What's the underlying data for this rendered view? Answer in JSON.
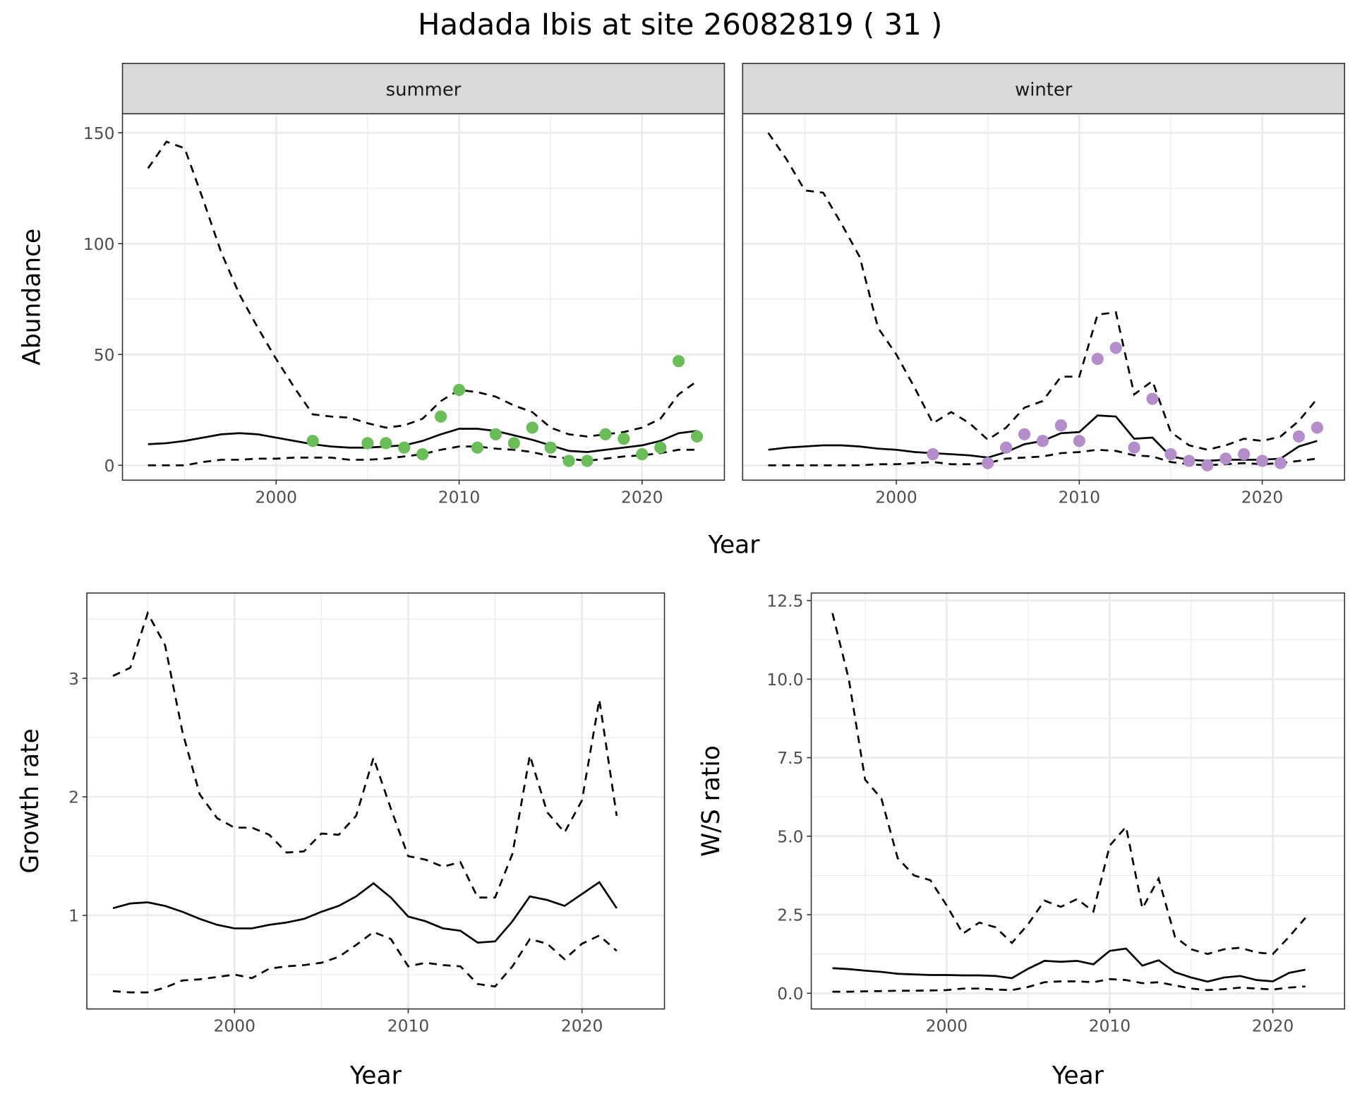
{
  "title": "Hadada Ibis at site 26082819 ( 31 )",
  "colors": {
    "summer_points": "#6ABD58",
    "winter_points": "#B48ECA",
    "line": "#000000",
    "grid": "#EBEBEB",
    "strip_bg": "#D9D9D9"
  },
  "chart_data": [
    {
      "id": "abundance",
      "type": "line",
      "facets": [
        "summer",
        "winter"
      ],
      "ylabel": "Abundance",
      "xlabel": "Year",
      "xlim": [
        1991.6,
        2024.5
      ],
      "ylim": [
        -6.7,
        158.6
      ],
      "xticks": [
        2000,
        2010,
        2020
      ],
      "yticks": [
        0,
        50,
        100,
        150
      ],
      "x": [
        1993,
        1994,
        1995,
        1996,
        1997,
        1998,
        1999,
        2000,
        2001,
        2002,
        2003,
        2004,
        2005,
        2006,
        2007,
        2008,
        2009,
        2010,
        2011,
        2012,
        2013,
        2014,
        2015,
        2016,
        2017,
        2018,
        2019,
        2020,
        2021,
        2022,
        2023
      ],
      "summer": {
        "mean": [
          9.5,
          10,
          11,
          12.5,
          14,
          14.5,
          14,
          12.5,
          11,
          9.5,
          8.5,
          8,
          8,
          8.5,
          9,
          11,
          14,
          16.5,
          16.5,
          15.5,
          13.5,
          11.5,
          9,
          6.5,
          6,
          7,
          8,
          9,
          11,
          14.5,
          15.5
        ],
        "upper": [
          134,
          146,
          143,
          120,
          96,
          77,
          62,
          48,
          35,
          23,
          22,
          21.5,
          19,
          17,
          18,
          21,
          29,
          34,
          33,
          31,
          27,
          24,
          17,
          14,
          13,
          14,
          15,
          17,
          21,
          32,
          38
        ],
        "lower": [
          0,
          0,
          0,
          1.5,
          2.5,
          2.5,
          3,
          3,
          3.5,
          3.5,
          3.5,
          2.5,
          2.5,
          3,
          4,
          5,
          7,
          8.5,
          8.5,
          7.5,
          7,
          6,
          4,
          3,
          2,
          3,
          4,
          4.5,
          5.5,
          7,
          7
        ],
        "points_x": [
          2002,
          2005,
          2006,
          2007,
          2008,
          2009,
          2010,
          2011,
          2012,
          2013,
          2014,
          2015,
          2016,
          2017,
          2018,
          2019,
          2020,
          2021,
          2022,
          2023
        ],
        "points_y": [
          11,
          10,
          10,
          8,
          5,
          22,
          34,
          8,
          14,
          10,
          17,
          8,
          2,
          2,
          14,
          12,
          5,
          8,
          47,
          13
        ]
      },
      "winter": {
        "mean": [
          7,
          8,
          8.5,
          9,
          9,
          8.5,
          7.5,
          7,
          6,
          5.5,
          5,
          4.5,
          3.5,
          6,
          9.5,
          11,
          14.5,
          15,
          22.5,
          22,
          12,
          12.5,
          4,
          2.5,
          2,
          2.5,
          2.5,
          2.5,
          3,
          8.5,
          11
        ],
        "upper": [
          150,
          138,
          124,
          123,
          109,
          94,
          62,
          50,
          35,
          19,
          24,
          19,
          11.5,
          17,
          26,
          29,
          40,
          40,
          68,
          69,
          32,
          38,
          15,
          9,
          7,
          9,
          12,
          11,
          13,
          20,
          30
        ],
        "lower": [
          0,
          0,
          0,
          0,
          0,
          0,
          0.5,
          0.5,
          1,
          1.5,
          0.5,
          0.5,
          1,
          3,
          3.5,
          4,
          5.5,
          6,
          7,
          6.5,
          4.5,
          4,
          1.5,
          0.5,
          0,
          0.5,
          1,
          0.5,
          1,
          2,
          3
        ],
        "points_x": [
          2002,
          2005,
          2006,
          2007,
          2008,
          2009,
          2010,
          2011,
          2012,
          2013,
          2014,
          2015,
          2016,
          2017,
          2018,
          2019,
          2020,
          2021,
          2022,
          2023
        ],
        "points_y": [
          5,
          1,
          8,
          14,
          11,
          18,
          11,
          48,
          53,
          8,
          30,
          5,
          2,
          0,
          3,
          5,
          2,
          1,
          13,
          17
        ]
      }
    },
    {
      "id": "growth",
      "type": "line",
      "ylabel": "Growth rate",
      "xlabel": "Year",
      "xlim": [
        1991.5,
        2024.75
      ],
      "ylim": [
        0.21,
        3.72
      ],
      "xticks": [
        2000,
        2010,
        2020
      ],
      "yticks": [
        1,
        2,
        3
      ],
      "x": [
        1993,
        1994,
        1995,
        1996,
        1997,
        1998,
        1999,
        2000,
        2001,
        2002,
        2003,
        2004,
        2005,
        2006,
        2007,
        2008,
        2009,
        2010,
        2011,
        2012,
        2013,
        2014,
        2015,
        2016,
        2017,
        2018,
        2019,
        2020,
        2021,
        2022
      ],
      "mean": [
        1.06,
        1.1,
        1.11,
        1.08,
        1.03,
        0.97,
        0.92,
        0.89,
        0.89,
        0.92,
        0.94,
        0.97,
        1.03,
        1.08,
        1.16,
        1.27,
        1.15,
        0.99,
        0.95,
        0.89,
        0.87,
        0.77,
        0.78,
        0.95,
        1.16,
        1.13,
        1.08,
        1.18,
        1.28,
        1.06
      ],
      "upper": [
        3.02,
        3.09,
        3.55,
        3.28,
        2.55,
        2.02,
        1.82,
        1.74,
        1.74,
        1.68,
        1.53,
        1.54,
        1.69,
        1.68,
        1.84,
        2.33,
        1.9,
        1.5,
        1.47,
        1.41,
        1.45,
        1.15,
        1.15,
        1.52,
        2.35,
        1.87,
        1.7,
        1.97,
        2.82,
        1.84
      ],
      "lower": [
        0.36,
        0.35,
        0.35,
        0.39,
        0.45,
        0.46,
        0.48,
        0.5,
        0.47,
        0.55,
        0.57,
        0.58,
        0.6,
        0.65,
        0.75,
        0.86,
        0.8,
        0.57,
        0.6,
        0.58,
        0.57,
        0.42,
        0.4,
        0.57,
        0.8,
        0.76,
        0.63,
        0.76,
        0.83,
        0.7
      ]
    },
    {
      "id": "ratio",
      "type": "line",
      "ylabel": "W/S ratio",
      "xlabel": "Year",
      "xlim": [
        1991.7,
        2024.4
      ],
      "ylim": [
        -0.5,
        12.74
      ],
      "xticks": [
        2000,
        2010,
        2020
      ],
      "yticks": [
        "0.0",
        "2.5",
        "5.0",
        "7.5",
        "10.0",
        "12.5"
      ],
      "x": [
        1993,
        1994,
        1995,
        1996,
        1997,
        1998,
        1999,
        2000,
        2001,
        2002,
        2003,
        2004,
        2005,
        2006,
        2007,
        2008,
        2009,
        2010,
        2011,
        2012,
        2013,
        2014,
        2015,
        2016,
        2017,
        2018,
        2019,
        2020,
        2021,
        2022
      ],
      "mean": [
        0.8,
        0.77,
        0.72,
        0.68,
        0.62,
        0.6,
        0.58,
        0.58,
        0.57,
        0.57,
        0.55,
        0.48,
        0.78,
        1.03,
        1.0,
        1.03,
        0.92,
        1.35,
        1.42,
        0.88,
        1.05,
        0.67,
        0.5,
        0.37,
        0.5,
        0.55,
        0.42,
        0.38,
        0.65,
        0.75
      ],
      "upper": [
        12.1,
        10,
        6.8,
        6.2,
        4.3,
        3.75,
        3.6,
        2.8,
        1.9,
        2.25,
        2.1,
        1.6,
        2.2,
        2.95,
        2.75,
        3.0,
        2.6,
        4.7,
        5.3,
        2.7,
        3.65,
        1.8,
        1.4,
        1.25,
        1.4,
        1.45,
        1.3,
        1.25,
        1.8,
        2.4
      ],
      "lower": [
        0.05,
        0.05,
        0.06,
        0.07,
        0.08,
        0.08,
        0.09,
        0.1,
        0.15,
        0.15,
        0.12,
        0.1,
        0.2,
        0.35,
        0.38,
        0.38,
        0.35,
        0.45,
        0.42,
        0.32,
        0.35,
        0.25,
        0.15,
        0.1,
        0.13,
        0.18,
        0.15,
        0.12,
        0.18,
        0.22
      ]
    }
  ]
}
